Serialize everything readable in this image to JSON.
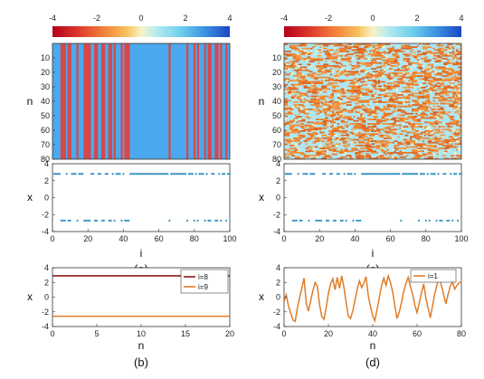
{
  "colors": {
    "orange": "#e07d26",
    "darkred": "#8b1a14",
    "scatter": "#2f8fbf",
    "cyan_cell": "#aee7f2",
    "blue_field": "#4aa9ee",
    "red_stripe": "#d6484a"
  },
  "chart_data": [
    {
      "id": "a-top",
      "type": "heatmap",
      "colorbar": {
        "ticks": [
          "-4",
          "-2",
          "0",
          "2",
          "4"
        ],
        "range": [
          -4,
          4
        ]
      },
      "ylabel": "n",
      "yticks": [
        "10",
        "20",
        "30",
        "40",
        "50",
        "60",
        "70",
        "80"
      ],
      "x_range": [
        0,
        100
      ],
      "y_range": [
        1,
        80
      ],
      "background_value": 2.8,
      "stripe_value": -2.7,
      "stripe_columns": [
        5,
        6,
        7,
        9,
        10,
        14,
        18,
        19,
        20,
        21,
        24,
        25,
        28,
        29,
        32,
        33,
        35,
        39,
        41,
        42,
        43,
        66,
        76,
        80,
        82,
        86,
        88,
        89,
        92,
        93,
        95,
        98
      ]
    },
    {
      "id": "a-bottom",
      "type": "scatter",
      "xlabel": "i",
      "ylabel": "x",
      "xticks": [
        "0",
        "20",
        "40",
        "60",
        "80",
        "100"
      ],
      "yticks": [
        "4",
        "2",
        "0",
        "-2",
        "-4"
      ],
      "xlim": [
        0,
        100
      ],
      "ylim": [
        -4,
        4
      ],
      "upper_value": 2.8,
      "lower_value": -2.7,
      "lower_indices": [
        5,
        6,
        7,
        9,
        10,
        14,
        18,
        19,
        20,
        21,
        24,
        25,
        28,
        29,
        32,
        33,
        35,
        39,
        41,
        42,
        43,
        66,
        76,
        80,
        82,
        86,
        88,
        89,
        92,
        93,
        95,
        98
      ],
      "caption": "(a)"
    },
    {
      "id": "b",
      "type": "line",
      "xlabel": "n",
      "ylabel": "x",
      "xticks": [
        "0",
        "5",
        "10",
        "15",
        "20"
      ],
      "yticks": [
        "4",
        "2",
        "0",
        "-2",
        "-4"
      ],
      "xlim": [
        0,
        20
      ],
      "ylim": [
        -4,
        4
      ],
      "series": [
        {
          "name": "i=8",
          "x": [
            0,
            20
          ],
          "y": [
            2.9,
            2.9
          ]
        },
        {
          "name": "i=9",
          "x": [
            0,
            20
          ],
          "y": [
            -2.6,
            -2.6
          ]
        }
      ],
      "caption": "(b)"
    },
    {
      "id": "c-top",
      "type": "heatmap",
      "colorbar": {
        "ticks": [
          "-4",
          "-2",
          "0",
          "2",
          "4"
        ],
        "range": [
          -4,
          4
        ]
      },
      "ylabel": "n",
      "yticks": [
        "10",
        "20",
        "30",
        "40",
        "50",
        "60",
        "70",
        "80"
      ],
      "x_range": [
        0,
        100
      ],
      "y_range": [
        1,
        80
      ],
      "note_values": "chaotic field, values mostly near -3 (orange) and +1 (light cyan)"
    },
    {
      "id": "c-bottom",
      "type": "scatter",
      "xlabel": "i",
      "ylabel": "x",
      "xticks": [
        "0",
        "20",
        "40",
        "60",
        "80",
        "100"
      ],
      "yticks": [
        "4",
        "2",
        "0",
        "-2",
        "-4"
      ],
      "xlim": [
        0,
        100
      ],
      "ylim": [
        -4,
        4
      ],
      "upper_value": 2.8,
      "lower_value": -2.7,
      "lower_indices": [
        5,
        6,
        7,
        9,
        10,
        14,
        18,
        19,
        20,
        21,
        24,
        25,
        28,
        29,
        32,
        33,
        35,
        39,
        41,
        42,
        43,
        66,
        76,
        80,
        82,
        86,
        88,
        89,
        92,
        93,
        95,
        98
      ],
      "caption": "(c)"
    },
    {
      "id": "d",
      "type": "line",
      "xlabel": "n",
      "ylabel": "x",
      "xticks": [
        "0",
        "20",
        "40",
        "60",
        "80"
      ],
      "yticks": [
        "4",
        "2",
        "0",
        "-2",
        "-4"
      ],
      "xlim": [
        0,
        80
      ],
      "ylim": [
        -4,
        4
      ],
      "series": [
        {
          "name": "i=1",
          "x": [
            0,
            1,
            2,
            3,
            4,
            5,
            6,
            7,
            8,
            9,
            10,
            11,
            12,
            13,
            14,
            15,
            16,
            17,
            18,
            19,
            20,
            21,
            22,
            23,
            24,
            25,
            26,
            27,
            28,
            29,
            30,
            31,
            32,
            33,
            34,
            35,
            36,
            37,
            38,
            39,
            40,
            41,
            42,
            43,
            44,
            45,
            46,
            47,
            48,
            49,
            50,
            51,
            52,
            53,
            54,
            55,
            56,
            57,
            58,
            59,
            60,
            61,
            62,
            63,
            64,
            65,
            66,
            67,
            68,
            69,
            70,
            71,
            72,
            73,
            74,
            75,
            76,
            77,
            78,
            79,
            80
          ],
          "y": [
            -0.6,
            0.3,
            -1.2,
            -2.2,
            -3.1,
            -3.3,
            -1.5,
            -0.1,
            1.2,
            2.6,
            -0.8,
            -1.9,
            -0.5,
            0.9,
            2.0,
            1.5,
            -1.0,
            -2.6,
            -3.0,
            -1.4,
            0.5,
            1.8,
            2.5,
            1.0,
            2.7,
            1.2,
            2.9,
            1.4,
            -0.7,
            -2.6,
            -2.9,
            -1.9,
            -0.4,
            1.1,
            2.2,
            1.3,
            1.9,
            2.8,
            0.2,
            -1.3,
            -2.6,
            -3.2,
            -1.6,
            0.0,
            1.6,
            2.6,
            1.6,
            2.9,
            2.0,
            0.7,
            -1.2,
            -2.9,
            -2.0,
            -0.7,
            0.8,
            1.9,
            2.7,
            1.5,
            0.4,
            -1.1,
            -2.1,
            -0.8,
            0.6,
            1.8,
            -0.2,
            -1.5,
            -2.8,
            -1.2,
            0.5,
            1.7,
            2.7,
            1.6,
            0.3,
            -0.9,
            0.4,
            1.5,
            2.1,
            1.1,
            1.6,
            2.0,
            2.0
          ]
        }
      ],
      "caption": "(d)"
    }
  ]
}
